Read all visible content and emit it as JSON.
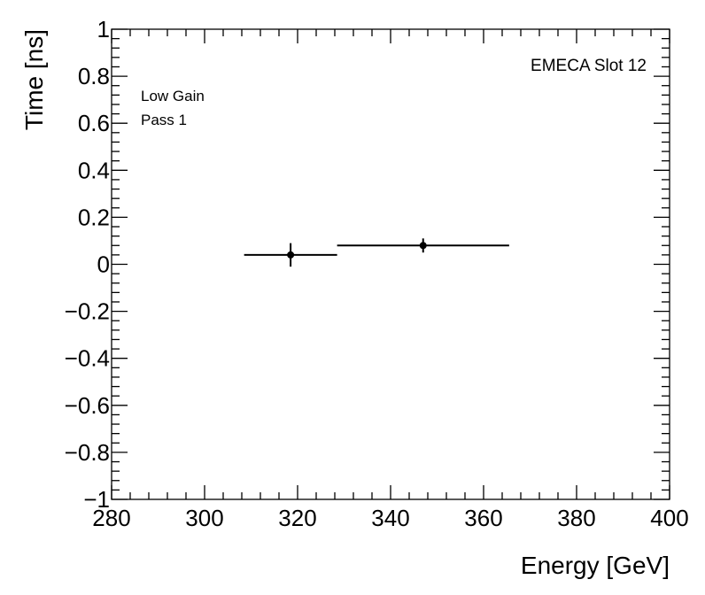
{
  "chart_data": {
    "type": "scatter",
    "xlabel": "Energy [GeV]",
    "ylabel": "Time [ns]",
    "xlim": [
      280,
      400
    ],
    "ylim": [
      -1,
      1
    ],
    "x_ticks": [
      280,
      300,
      320,
      340,
      360,
      380,
      400
    ],
    "y_ticks": [
      -1,
      -0.8,
      -0.6,
      -0.4,
      -0.2,
      0,
      0.2,
      0.4,
      0.6,
      0.8,
      1
    ],
    "x_tick_labels": [
      "280",
      "300",
      "320",
      "340",
      "360",
      "380",
      "400"
    ],
    "y_tick_labels": [
      "−1",
      "−0.8",
      "−0.6",
      "−0.4",
      "−0.2",
      "0",
      "0.2",
      "0.4",
      "0.6",
      "0.8",
      "1"
    ],
    "grid": false,
    "series": [
      {
        "points": [
          {
            "x": 318.5,
            "y": 0.04,
            "x_low": 308.5,
            "x_high": 328.5,
            "y_err": 0.05
          },
          {
            "x": 347.0,
            "y": 0.08,
            "x_low": 328.5,
            "x_high": 365.5,
            "y_err": 0.03
          }
        ]
      }
    ],
    "annotations": {
      "top_left": [
        "Low Gain",
        "Pass 1"
      ],
      "top_right": "EMECA Slot 12"
    }
  }
}
